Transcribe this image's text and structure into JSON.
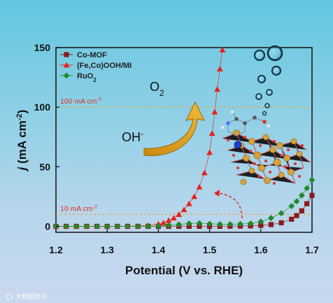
{
  "chart_data": {
    "type": "scatter",
    "xlabel": "Potential (V vs. RHE)",
    "ylabel": "j (mA cm⁻²)",
    "ylabel_main": "j",
    "ylabel_unit": "(mA cm",
    "ylabel_sup": "-2",
    "ylabel_close": ")",
    "xlim": [
      1.2,
      1.7
    ],
    "ylim": [
      -5,
      150
    ],
    "x_ticks": [
      "1.2",
      "1.3",
      "1.4",
      "1.5",
      "1.6",
      "1.7"
    ],
    "y_ticks": [
      "0",
      "50",
      "100",
      "150"
    ],
    "legend_position": "top-left",
    "series": [
      {
        "name": "Co-MOF",
        "marker": "square",
        "color": "#8b1a1a",
        "x": [
          1.2,
          1.22,
          1.24,
          1.26,
          1.28,
          1.3,
          1.32,
          1.34,
          1.36,
          1.38,
          1.4,
          1.42,
          1.44,
          1.46,
          1.48,
          1.5,
          1.52,
          1.54,
          1.56,
          1.58,
          1.6,
          1.62,
          1.64,
          1.66,
          1.67,
          1.68,
          1.69,
          1.7
        ],
        "y": [
          0,
          0,
          0,
          0,
          0,
          0,
          0,
          0,
          0,
          0,
          0,
          0,
          0,
          0,
          0,
          0,
          0,
          0.1,
          0.2,
          0.4,
          0.8,
          1.5,
          3,
          6,
          9,
          13,
          19,
          26
        ]
      },
      {
        "name": "(Fe,Co)OOH/MI",
        "marker": "triangle",
        "color": "#e8201a",
        "x": [
          1.2,
          1.22,
          1.24,
          1.26,
          1.28,
          1.3,
          1.32,
          1.34,
          1.36,
          1.38,
          1.4,
          1.41,
          1.42,
          1.43,
          1.44,
          1.45,
          1.46,
          1.47,
          1.48,
          1.49,
          1.5,
          1.505,
          1.51,
          1.515,
          1.52,
          1.525
        ],
        "y": [
          0,
          0,
          0,
          0,
          0,
          0,
          0,
          0.1,
          0.3,
          0.8,
          2,
          3,
          5,
          7,
          10,
          14,
          19,
          25,
          33,
          45,
          62,
          78,
          96,
          115,
          132,
          148
        ]
      },
      {
        "name": "RuO",
        "name_sub": "2",
        "marker": "diamond",
        "color": "#1e8a2a",
        "x": [
          1.2,
          1.22,
          1.24,
          1.26,
          1.28,
          1.3,
          1.32,
          1.34,
          1.36,
          1.38,
          1.4,
          1.42,
          1.44,
          1.46,
          1.48,
          1.5,
          1.52,
          1.54,
          1.56,
          1.58,
          1.6,
          1.62,
          1.64,
          1.66,
          1.67,
          1.68,
          1.69,
          1.7
        ],
        "y": [
          0,
          0,
          0,
          0,
          0,
          0,
          0,
          0,
          0,
          0.1,
          0.3,
          0.8,
          1.6,
          2.4,
          2.6,
          2.2,
          1.8,
          1.8,
          2,
          2.5,
          4,
          7,
          11,
          17,
          21,
          26,
          32,
          39
        ]
      }
    ],
    "reference_lines": [
      {
        "y": 100,
        "label": "100 mA cm",
        "sup": "-2",
        "color": "#e8a43a"
      },
      {
        "y": 10,
        "label": "10 mA cm",
        "sup": "-2",
        "color": "#e8a43a"
      }
    ],
    "annotations": {
      "product": "O",
      "product_sub": "2",
      "reactant": "OH",
      "reactant_sup": "-"
    }
  },
  "watermark": "大数据资讯"
}
